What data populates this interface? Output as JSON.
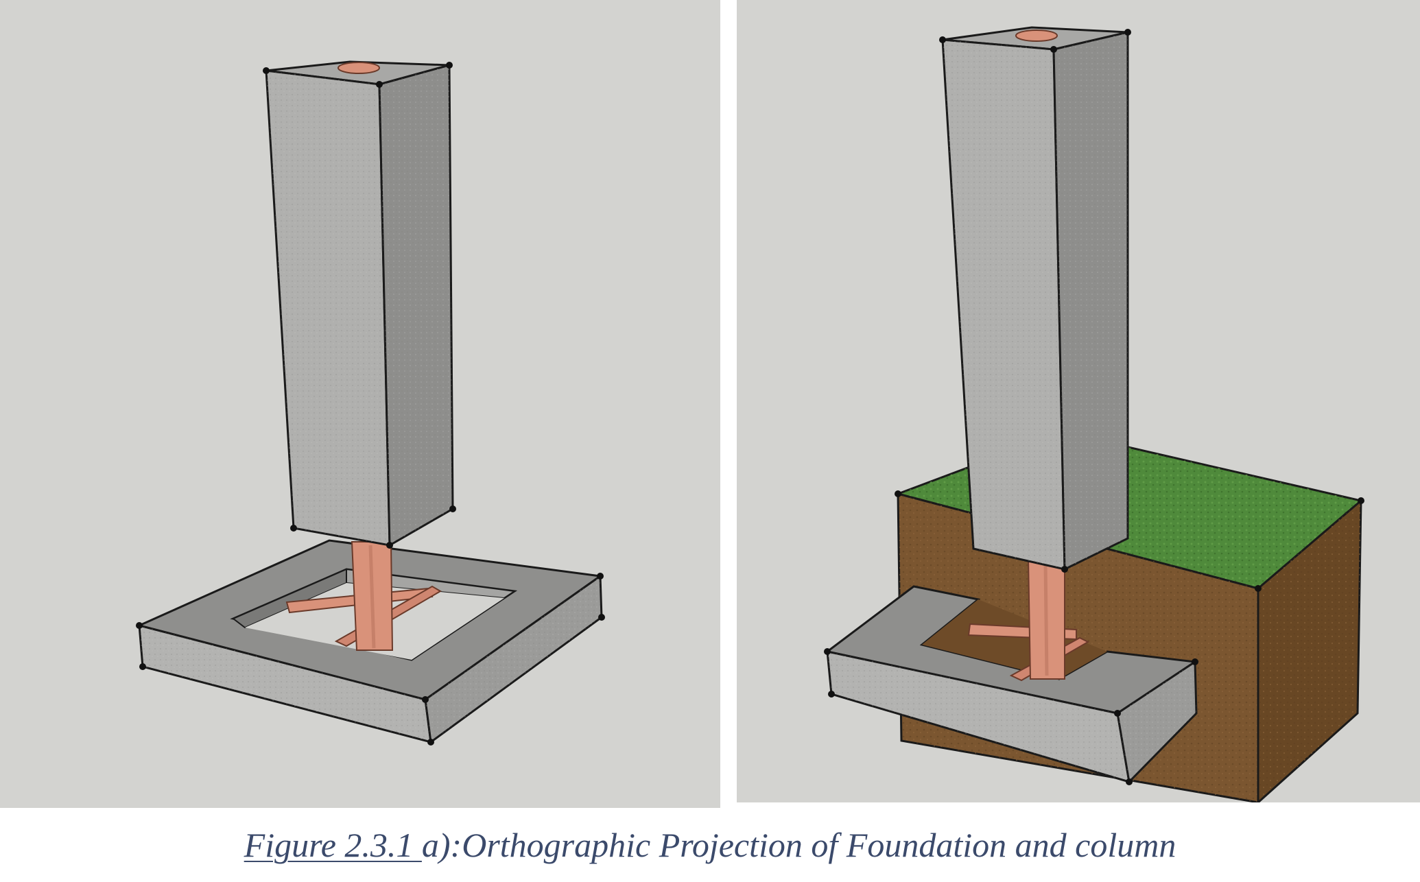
{
  "caption": {
    "label": "Figure 2.3.1 ",
    "text": "a):Orthographic Projection of Foundation and column"
  },
  "colors": {
    "background_panel": "#d3d3d0",
    "concrete_light": "#b3b3b1",
    "concrete_mid": "#9b9b99",
    "concrete_dark": "#878785",
    "rebar": "#d9927a",
    "grass": "#4f8a3b",
    "soil": "#7b5630",
    "caption_text": "#3b4a6b"
  },
  "panels": [
    {
      "name": "foundation-and-column",
      "shows_soil": false
    },
    {
      "name": "foundation-and-column-in-soil",
      "shows_soil": true
    }
  ]
}
